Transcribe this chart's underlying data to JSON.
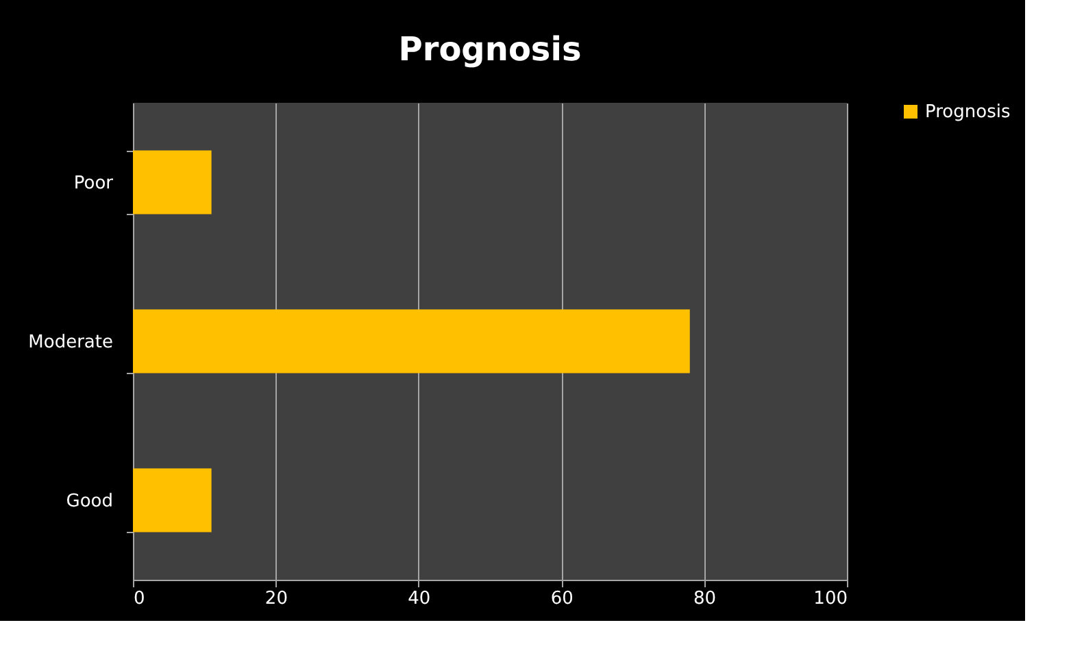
{
  "chart_data": {
    "type": "bar",
    "orientation": "horizontal",
    "title": "Prognosis",
    "categories": [
      "Poor",
      "Moderate",
      "Good"
    ],
    "series": [
      {
        "name": "Prognosis",
        "color": "#ffc000",
        "values": [
          11,
          78,
          11
        ]
      }
    ],
    "xlim": [
      0,
      100
    ],
    "xticks": [
      0,
      20,
      40,
      60,
      80,
      100
    ],
    "grid": "x",
    "legend": "right"
  }
}
